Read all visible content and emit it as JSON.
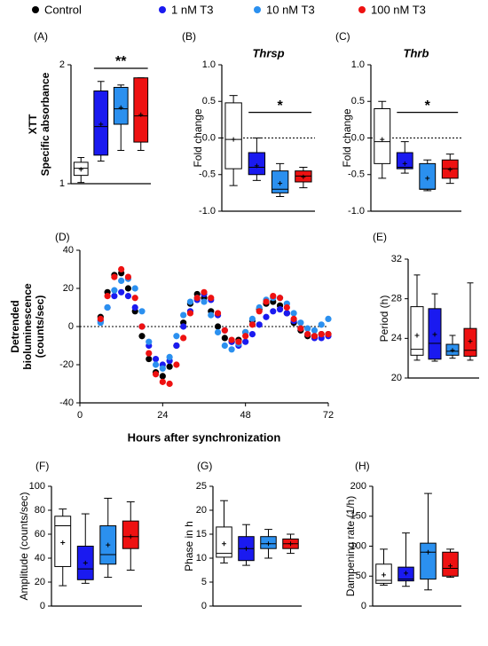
{
  "legend": [
    {
      "name": "Control",
      "color": "#000000"
    },
    {
      "name": "1 nM T3",
      "color": "#1a1af0"
    },
    {
      "name": "10 nM T3",
      "color": "#2b90ef"
    },
    {
      "name": "100 nM T3",
      "color": "#ee1111"
    }
  ],
  "box_fills": [
    "#ffffff",
    "#1a1af0",
    "#2b90ef",
    "#ee1111"
  ],
  "chart_data": [
    {
      "type": "box",
      "panel": "(A)",
      "ylabel": [
        "XTT",
        "Specific absorbance"
      ],
      "ylim": [
        1,
        2
      ],
      "yticks": [
        1,
        2
      ],
      "boxes": [
        {
          "min": 1.01,
          "q1": 1.07,
          "median": 1.13,
          "q3": 1.18,
          "max": 1.22,
          "mean": 1.12
        },
        {
          "min": 1.19,
          "q1": 1.24,
          "median": 1.48,
          "q3": 1.78,
          "max": 1.86,
          "mean": 1.5
        },
        {
          "min": 1.28,
          "q1": 1.5,
          "median": 1.63,
          "q3": 1.81,
          "max": 1.83,
          "mean": 1.64
        },
        {
          "min": 1.28,
          "q1": 1.35,
          "median": 1.57,
          "q3": 1.89,
          "max": 1.89,
          "mean": 1.58
        }
      ],
      "significance": {
        "text": "**",
        "from": 1,
        "to": 3,
        "y": 1.97
      }
    },
    {
      "type": "box",
      "panel": "(B)",
      "title": "Thrsp",
      "ylabel": [
        "Fold change"
      ],
      "ylim": [
        -1,
        1
      ],
      "yticks": [
        {
          "value": -1,
          "label": "-1.0"
        },
        {
          "value": -0.5,
          "label": "-0.5"
        },
        {
          "value": 0,
          "label": "0.0"
        },
        {
          "value": 0.5,
          "label": "0.5"
        },
        {
          "value": 1,
          "label": "1.0"
        }
      ],
      "zero_line": true,
      "boxes": [
        {
          "min": -0.65,
          "q1": -0.42,
          "median": -0.02,
          "q3": 0.48,
          "max": 0.58,
          "mean": -0.02
        },
        {
          "min": -0.58,
          "q1": -0.5,
          "median": -0.4,
          "q3": -0.2,
          "max": 0.0,
          "mean": -0.38
        },
        {
          "min": -0.8,
          "q1": -0.75,
          "median": -0.7,
          "q3": -0.45,
          "max": -0.35,
          "mean": -0.62
        },
        {
          "min": -0.68,
          "q1": -0.6,
          "median": -0.52,
          "q3": -0.45,
          "max": -0.4,
          "mean": -0.53
        }
      ],
      "significance": {
        "text": "*",
        "from": 1,
        "to": 3,
        "y": 0.35
      }
    },
    {
      "type": "box",
      "panel": "(C)",
      "title": "Thrb",
      "ylabel": [
        "Fold change"
      ],
      "ylim": [
        -1,
        1
      ],
      "yticks": [
        {
          "value": -1,
          "label": "-1.0"
        },
        {
          "value": -0.5,
          "label": "-0.5"
        },
        {
          "value": 0,
          "label": "0.0"
        },
        {
          "value": 0.5,
          "label": "0.5"
        },
        {
          "value": 1,
          "label": "1.0"
        }
      ],
      "zero_line": true,
      "boxes": [
        {
          "min": -0.55,
          "q1": -0.35,
          "median": -0.05,
          "q3": 0.4,
          "max": 0.5,
          "mean": -0.02
        },
        {
          "min": -0.48,
          "q1": -0.42,
          "median": -0.4,
          "q3": -0.2,
          "max": -0.05,
          "mean": -0.35
        },
        {
          "min": -0.72,
          "q1": -0.7,
          "median": -0.7,
          "q3": -0.35,
          "max": -0.3,
          "mean": -0.55
        },
        {
          "min": -0.62,
          "q1": -0.55,
          "median": -0.42,
          "q3": -0.3,
          "max": -0.22,
          "mean": -0.43
        }
      ],
      "significance": {
        "text": "*",
        "from": 1,
        "to": 3,
        "y": 0.35
      }
    },
    {
      "type": "line",
      "panel": "(D)",
      "ylabel": [
        "Detrended",
        "bioluminescence",
        "(counts/sec)"
      ],
      "xlabel": "Hours after synchronization",
      "xlim": [
        0,
        72
      ],
      "xticks": [
        0,
        24,
        48,
        72
      ],
      "ylim": [
        -40,
        40
      ],
      "yticks": [
        -40,
        -20,
        0,
        20,
        40
      ],
      "zero_line": true,
      "x": [
        6,
        8,
        10,
        12,
        14,
        16,
        18,
        20,
        22,
        24,
        26,
        28,
        30,
        32,
        34,
        36,
        38,
        40,
        42,
        44,
        46,
        48,
        50,
        52,
        54,
        56,
        58,
        60,
        62,
        64,
        66,
        68,
        70,
        72
      ],
      "series": [
        {
          "values": [
            5,
            18,
            27,
            28,
            20,
            8,
            -5,
            -17,
            -24,
            -26,
            -21,
            -10,
            2,
            12,
            17,
            15,
            8,
            0,
            -6,
            -8,
            -7,
            -3,
            3,
            9,
            12,
            13,
            11,
            7,
            2,
            -2,
            -5,
            -5,
            -4,
            -4
          ]
        },
        {
          "values": [
            3,
            10,
            16,
            18,
            16,
            10,
            0,
            -10,
            -17,
            -20,
            -18,
            -10,
            0,
            8,
            14,
            17,
            14,
            6,
            -2,
            -8,
            -10,
            -8,
            -4,
            1,
            5,
            8,
            9,
            7,
            3,
            -1,
            -4,
            -6,
            -6,
            -5
          ]
        },
        {
          "values": [
            2,
            10,
            19,
            24,
            25,
            20,
            8,
            -8,
            -20,
            -22,
            -16,
            -5,
            6,
            13,
            15,
            13,
            6,
            -3,
            -10,
            -12,
            -9,
            -3,
            4,
            10,
            14,
            15,
            15,
            12,
            7,
            2,
            -1,
            -2,
            1,
            4
          ]
        },
        {
          "values": [
            4,
            16,
            26,
            30,
            26,
            15,
            0,
            -14,
            -25,
            -29,
            -30,
            -20,
            -6,
            7,
            15,
            18,
            15,
            7,
            -2,
            -7,
            -8,
            -5,
            1,
            8,
            13,
            16,
            15,
            10,
            4,
            -1,
            -4,
            -5,
            -4,
            -4
          ]
        }
      ]
    },
    {
      "type": "box",
      "panel": "(E)",
      "ylabel": [
        "Period (h)"
      ],
      "ylim": [
        20,
        32
      ],
      "yticks": [
        20,
        24,
        28,
        32
      ],
      "boxes": [
        {
          "min": 21.8,
          "q1": 22.3,
          "median": 22.9,
          "q3": 27.2,
          "max": 30.4,
          "mean": 24.3
        },
        {
          "min": 21.7,
          "q1": 21.9,
          "median": 23.5,
          "q3": 27.0,
          "max": 28.5,
          "mean": 24.4
        },
        {
          "min": 22.0,
          "q1": 22.3,
          "median": 22.7,
          "q3": 23.4,
          "max": 24.3,
          "mean": 22.8
        },
        {
          "min": 21.8,
          "q1": 22.2,
          "median": 22.8,
          "q3": 25.0,
          "max": 29.6,
          "mean": 23.7
        }
      ]
    },
    {
      "type": "box",
      "panel": "(F)",
      "ylabel": [
        "Amplitude (counts/sec)"
      ],
      "ylim": [
        0,
        100
      ],
      "yticks": [
        0,
        20,
        40,
        60,
        80,
        100
      ],
      "boxes": [
        {
          "min": 17,
          "q1": 33,
          "median": 67,
          "q3": 75,
          "max": 81,
          "mean": 53
        },
        {
          "min": 19,
          "q1": 22,
          "median": 31,
          "q3": 50,
          "max": 77,
          "mean": 36
        },
        {
          "min": 24,
          "q1": 35,
          "median": 43,
          "q3": 67,
          "max": 90,
          "mean": 51
        },
        {
          "min": 30,
          "q1": 48,
          "median": 58,
          "q3": 71,
          "max": 87,
          "mean": 58
        }
      ]
    },
    {
      "type": "box",
      "panel": "(G)",
      "ylabel": [
        "Phase in h"
      ],
      "ylim": [
        0,
        25
      ],
      "yticks": [
        0,
        5,
        10,
        15,
        20,
        25
      ],
      "boxes": [
        {
          "min": 9,
          "q1": 10.2,
          "median": 11,
          "q3": 16.5,
          "max": 22,
          "mean": 13
        },
        {
          "min": 8.5,
          "q1": 9.5,
          "median": 12,
          "q3": 14.5,
          "max": 17,
          "mean": 12
        },
        {
          "min": 10,
          "q1": 12,
          "median": 13,
          "q3": 14.5,
          "max": 16,
          "mean": 13
        },
        {
          "min": 11,
          "q1": 12,
          "median": 13,
          "q3": 14,
          "max": 15,
          "mean": 13
        }
      ]
    },
    {
      "type": "box",
      "panel": "(H)",
      "ylabel": [
        "Dampening rate (1/h)"
      ],
      "ylim": [
        0,
        200
      ],
      "yticks": [
        0,
        50,
        100,
        150,
        200
      ],
      "boxes": [
        {
          "min": 35,
          "q1": 38,
          "median": 43,
          "q3": 70,
          "max": 95,
          "mean": 52
        },
        {
          "min": 33,
          "q1": 42,
          "median": 45,
          "q3": 65,
          "max": 122,
          "mean": 55
        },
        {
          "min": 27,
          "q1": 45,
          "median": 90,
          "q3": 105,
          "max": 188,
          "mean": 90
        },
        {
          "min": 48,
          "q1": 50,
          "median": 63,
          "q3": 90,
          "max": 95,
          "mean": 67
        }
      ]
    }
  ]
}
